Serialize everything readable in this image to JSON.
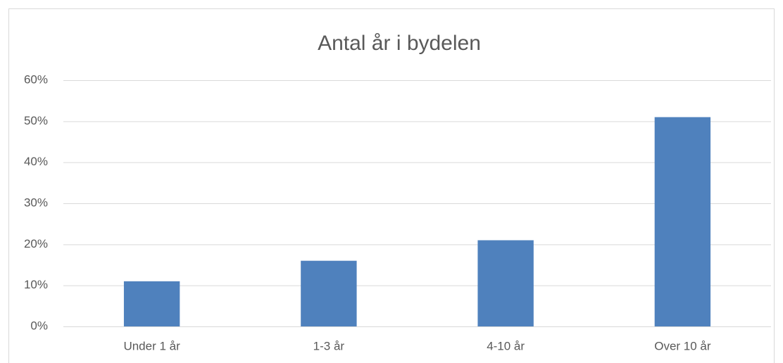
{
  "chart_data": {
    "type": "bar",
    "title": "Antal år i bydelen",
    "categories": [
      "Under 1 år",
      "1-3 år",
      "4-10 år",
      "Over 10 år"
    ],
    "values": [
      11,
      16,
      21,
      51
    ],
    "color": "#4f81bd",
    "ylim": [
      0,
      60
    ],
    "yticks": [
      {
        "value": 0,
        "label": "0%"
      },
      {
        "value": 10,
        "label": "10%"
      },
      {
        "value": 20,
        "label": "20%"
      },
      {
        "value": 30,
        "label": "30%"
      },
      {
        "value": 40,
        "label": "40%"
      },
      {
        "value": 50,
        "label": "50%"
      },
      {
        "value": 60,
        "label": "60%"
      }
    ],
    "grid": true
  }
}
